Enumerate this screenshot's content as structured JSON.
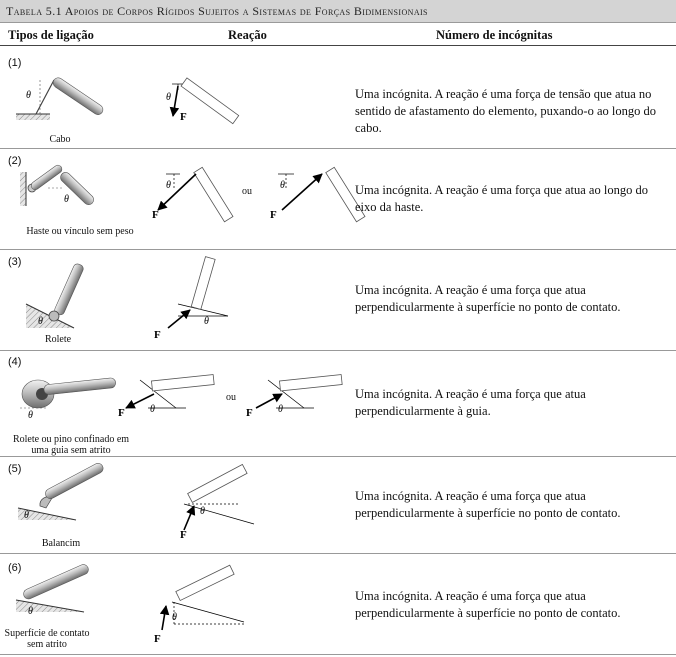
{
  "table": {
    "title": "Tabela 5.1   Apoios de Corpos Rígidos Sujeitos a Sistemas de Forças Bidimensionais",
    "headers": {
      "connection": "Tipos de ligação",
      "reaction": "Reação",
      "unknowns": "Número de incógnitas"
    },
    "or_label": "ou",
    "theta_label": "θ",
    "force_label": "F",
    "rows": [
      {
        "number": "(1)",
        "caption": "Cabo",
        "description": "Uma incógnita. A reação é uma força de tensão que atua no sentido de afastamento do elemento, puxando-o ao longo do cabo."
      },
      {
        "number": "(2)",
        "caption": "Haste ou vínculo sem peso",
        "description": "Uma incógnita. A reação é uma força que atua ao longo do eixo da haste."
      },
      {
        "number": "(3)",
        "caption": "Rolete",
        "description": "Uma incógnita. A reação é uma força que atua perpendicularmente à superfície no ponto de contato."
      },
      {
        "number": "(4)",
        "caption": "Rolete ou pino confinado em uma guia sem atrito",
        "description": "Uma incógnita. A reação é uma força que atua perpendicularmente à guia."
      },
      {
        "number": "(5)",
        "caption": "Balancim",
        "description": "Uma incógnita. A reação é uma força que atua perpendicularmente à superfície no ponto de contato."
      },
      {
        "number": "(6)",
        "caption": "Superfície de contato sem atrito",
        "description": "Uma incógnita. A reação é uma força que atua perpendicularmente à superfície no ponto de contato."
      }
    ]
  }
}
